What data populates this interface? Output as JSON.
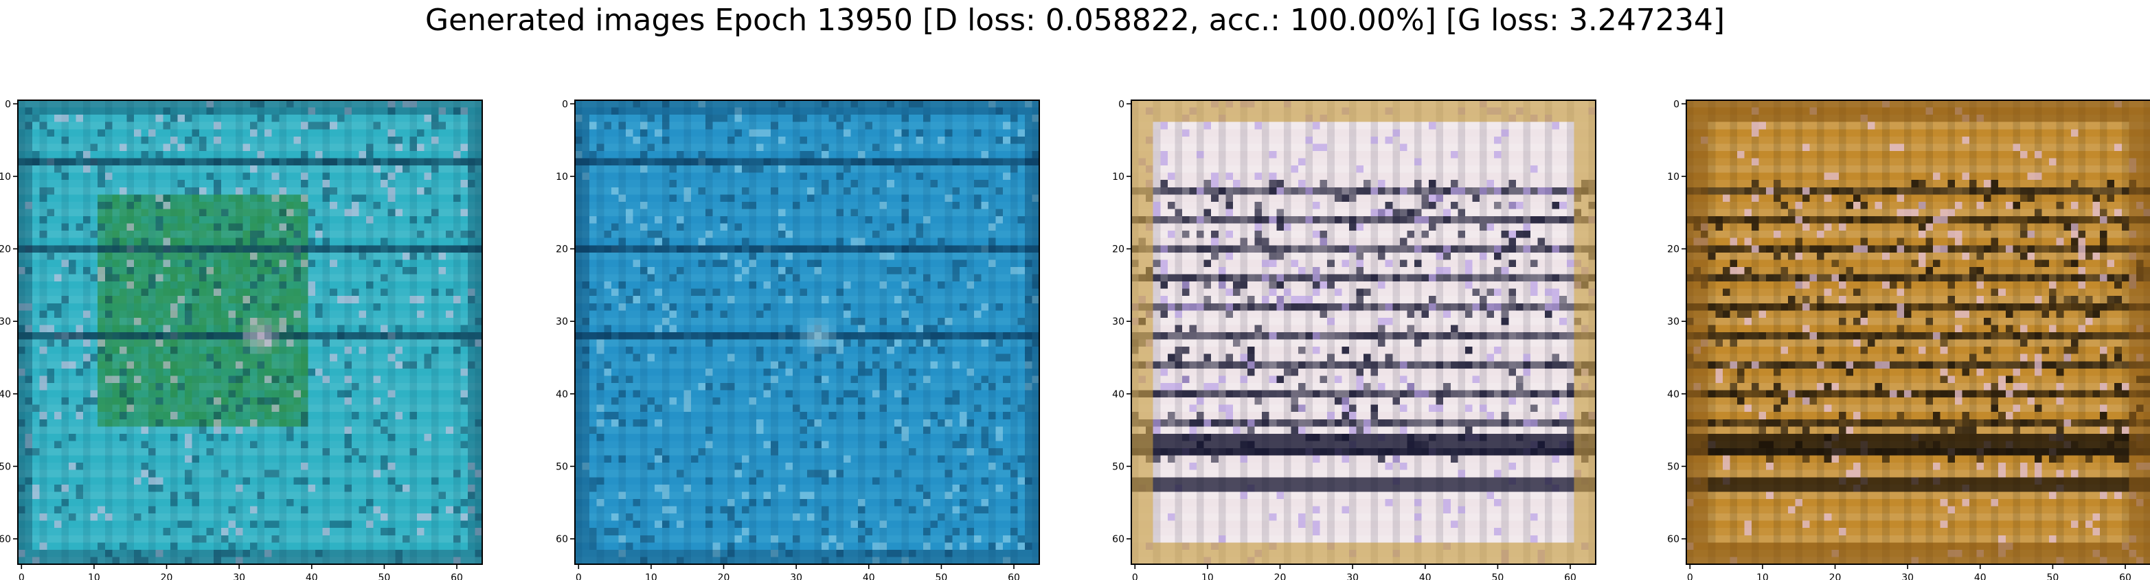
{
  "figure": {
    "title": "Generated images Epoch 13950 [D loss: 0.058822, acc.: 100.00%] [G loss: 3.247234]"
  },
  "chart_data": [
    {
      "type": "heatmap",
      "xlim": [
        -0.5,
        63.5
      ],
      "ylim": [
        63.5,
        -0.5
      ],
      "xticks": [
        0,
        10,
        20,
        30,
        40,
        50,
        60
      ],
      "yticks": [
        0,
        10,
        20,
        30,
        40,
        50,
        60
      ],
      "content": "generated 64x64 RGB image",
      "palette": {
        "base": "#2fb2c4",
        "dark": "#0c3b55",
        "light": "#8fd7e0",
        "accent": "#2a8a36",
        "highlight": "#f0c6e6"
      }
    },
    {
      "type": "heatmap",
      "xlim": [
        -0.5,
        63.5
      ],
      "ylim": [
        63.5,
        -0.5
      ],
      "xticks": [
        0,
        10,
        20,
        30,
        40,
        50,
        60
      ],
      "yticks": [
        0,
        10,
        20,
        30,
        40,
        50,
        60
      ],
      "content": "generated 64x64 RGB image",
      "palette": {
        "base": "#2592c8",
        "dark": "#0a3a5e",
        "light": "#5cc0e0",
        "accent": "#1c6fae",
        "highlight": "#a6dcef"
      }
    },
    {
      "type": "heatmap",
      "xlim": [
        -0.5,
        63.5
      ],
      "ylim": [
        63.5,
        -0.5
      ],
      "xticks": [
        0,
        10,
        20,
        30,
        40,
        50,
        60
      ],
      "yticks": [
        0,
        10,
        20,
        30,
        40,
        50,
        60
      ],
      "content": "generated 64x64 RGB image",
      "palette": {
        "base": "#efe4e8",
        "dark": "#151530",
        "light": "#ffffff",
        "accent": "#c59a3a",
        "highlight": "#b8a0e6"
      }
    },
    {
      "type": "heatmap",
      "xlim": [
        -0.5,
        63.5
      ],
      "ylim": [
        63.5,
        -0.5
      ],
      "xticks": [
        0,
        10,
        20,
        30,
        40,
        50,
        60
      ],
      "yticks": [
        0,
        10,
        20,
        30,
        40,
        50,
        60
      ],
      "content": "generated 64x64 RGB image",
      "palette": {
        "base": "#c38a2c",
        "dark": "#1a1208",
        "light": "#f2e6c8",
        "accent": "#8a5a18",
        "highlight": "#e7c4e0"
      }
    }
  ]
}
